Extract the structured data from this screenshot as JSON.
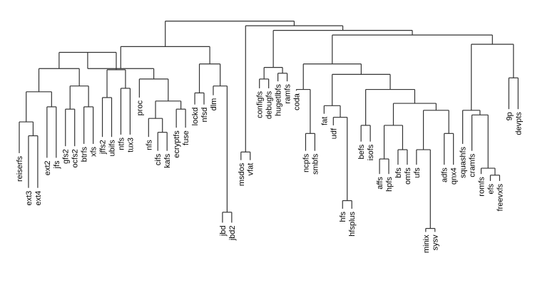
{
  "chart_data": {
    "type": "dendrogram",
    "title": "",
    "xlabel": "",
    "ylabel": "",
    "axes_visible": false,
    "height_range": [
      0,
      1
    ],
    "leaves": [
      {
        "name": "reiserfs",
        "tip": 0.4
      },
      {
        "name": "ext3",
        "tip": 0.25
      },
      {
        "name": "ext4",
        "tip": 0.25
      },
      {
        "name": "ext2",
        "tip": 0.38
      },
      {
        "name": "jfs",
        "tip": 0.38
      },
      {
        "name": "gfs2",
        "tip": 0.43
      },
      {
        "name": "ocfs2",
        "tip": 0.43
      },
      {
        "name": "btrfs",
        "tip": 0.44
      },
      {
        "name": "xfs",
        "tip": 0.44
      },
      {
        "name": "jffs2",
        "tip": 0.47
      },
      {
        "name": "ubifs",
        "tip": 0.47
      },
      {
        "name": "ntfs",
        "tip": 0.48
      },
      {
        "name": "tux3",
        "tip": 0.48
      },
      {
        "name": "proc",
        "tip": 0.64
      },
      {
        "name": "nfs",
        "tip": 0.47
      },
      {
        "name": "cifs",
        "tip": 0.41
      },
      {
        "name": "kafs",
        "tip": 0.41
      },
      {
        "name": "ecryptfs",
        "tip": 0.51
      },
      {
        "name": "fuse",
        "tip": 0.51
      },
      {
        "name": "lockd",
        "tip": 0.61
      },
      {
        "name": "nfsd",
        "tip": 0.61
      },
      {
        "name": "dlm",
        "tip": 0.65
      },
      {
        "name": "jbd",
        "tip": 0.1
      },
      {
        "name": "jbd2",
        "tip": 0.1
      },
      {
        "name": "msdos",
        "tip": 0.37
      },
      {
        "name": "vfat",
        "tip": 0.37
      },
      {
        "name": "configfs",
        "tip": 0.68
      },
      {
        "name": "debugfs",
        "tip": 0.68
      },
      {
        "name": "hugetlbfs",
        "tip": 0.71
      },
      {
        "name": "ramfs",
        "tip": 0.71
      },
      {
        "name": "coda",
        "tip": 0.67
      },
      {
        "name": "ncpfs",
        "tip": 0.41
      },
      {
        "name": "smbfs",
        "tip": 0.41
      },
      {
        "name": "fat",
        "tip": 0.57
      },
      {
        "name": "udf",
        "tip": 0.52
      },
      {
        "name": "hfs",
        "tip": 0.16
      },
      {
        "name": "hfsplus",
        "tip": 0.16
      },
      {
        "name": "befs",
        "tip": 0.45
      },
      {
        "name": "isofs",
        "tip": 0.45
      },
      {
        "name": "affs",
        "tip": 0.31
      },
      {
        "name": "hpfs",
        "tip": 0.31
      },
      {
        "name": "bfs",
        "tip": 0.35
      },
      {
        "name": "omfs",
        "tip": 0.35
      },
      {
        "name": "ufs",
        "tip": 0.35
      },
      {
        "name": "minix",
        "tip": 0.06
      },
      {
        "name": "sysv",
        "tip": 0.06
      },
      {
        "name": "adfs",
        "tip": 0.35
      },
      {
        "name": "qnx4",
        "tip": 0.35
      },
      {
        "name": "squashfs",
        "tip": 0.44
      },
      {
        "name": "cramfs",
        "tip": 0.41
      },
      {
        "name": "romfs",
        "tip": 0.31
      },
      {
        "name": "efs",
        "tip": 0.28
      },
      {
        "name": "freevxfs",
        "tip": 0.28
      },
      {
        "name": "9p",
        "tip": 0.59
      },
      {
        "name": "devpts",
        "tip": 0.59
      }
    ],
    "merges": [
      {
        "id": "A1",
        "children": [
          "ext3",
          "ext4"
        ],
        "height": 0.475
      },
      {
        "id": "A2",
        "children": [
          "reiserfs",
          "A1"
        ],
        "height": 0.535
      },
      {
        "id": "A3",
        "children": [
          "ext2",
          "jfs"
        ],
        "height": 0.6
      },
      {
        "id": "A4",
        "children": [
          "A2",
          "A3"
        ],
        "height": 0.665
      },
      {
        "id": "A5",
        "children": [
          "gfs2",
          "ocfs2"
        ],
        "height": 0.59
      },
      {
        "id": "A6",
        "children": [
          "btrfs",
          "xfs"
        ],
        "height": 0.6
      },
      {
        "id": "A7",
        "children": [
          "A5",
          "A6"
        ],
        "height": 0.69
      },
      {
        "id": "A8",
        "children": [
          "A4",
          "A7"
        ],
        "height": 0.765
      },
      {
        "id": "A9",
        "children": [
          "jffs2",
          "ubifs"
        ],
        "height": 0.64
      },
      {
        "id": "A10",
        "children": [
          "ntfs",
          "tux3"
        ],
        "height": 0.68
      },
      {
        "id": "A11",
        "children": [
          "A9",
          "A10"
        ],
        "height": 0.76
      },
      {
        "id": "A12",
        "children": [
          "A8",
          "A11"
        ],
        "height": 0.835
      },
      {
        "id": "B1",
        "children": [
          "cifs",
          "kafs"
        ],
        "height": 0.49
      },
      {
        "id": "B2",
        "children": [
          "nfs",
          "B1"
        ],
        "height": 0.55
      },
      {
        "id": "B3",
        "children": [
          "ecryptfs",
          "fuse"
        ],
        "height": 0.59
      },
      {
        "id": "B4",
        "children": [
          "B2",
          "B3"
        ],
        "height": 0.625
      },
      {
        "id": "B5",
        "children": [
          "proc",
          "B4"
        ],
        "height": 0.72
      },
      {
        "id": "B6",
        "children": [
          "A12",
          "B5"
        ],
        "height": 0.765
      },
      {
        "id": "C1",
        "children": [
          "lockd",
          "nfsd"
        ],
        "height": 0.66
      },
      {
        "id": "C2",
        "children": [
          "jbd",
          "jbd2"
        ],
        "height": 0.145
      },
      {
        "id": "C3",
        "children": [
          "dlm",
          "C2"
        ],
        "height": 0.69
      },
      {
        "id": "C4",
        "children": [
          "C1",
          "C3"
        ],
        "height": 0.785
      },
      {
        "id": "R1",
        "children": [
          "B6",
          "C4"
        ],
        "height": 0.86
      },
      {
        "id": "D1",
        "children": [
          "msdos",
          "vfat"
        ],
        "height": 0.405
      },
      {
        "id": "E1",
        "children": [
          "configfs",
          "debugfs"
        ],
        "height": 0.72
      },
      {
        "id": "E2",
        "children": [
          "hugetlbfs",
          "ramfs"
        ],
        "height": 0.745
      },
      {
        "id": "E3",
        "children": [
          "E1",
          "E2"
        ],
        "height": 0.77
      },
      {
        "id": "F1",
        "children": [
          "ncpfs",
          "smbfs"
        ],
        "height": 0.485
      },
      {
        "id": "F2",
        "children": [
          "coda",
          "F1"
        ],
        "height": 0.675
      },
      {
        "id": "G1",
        "children": [
          "hfs",
          "hfsplus"
        ],
        "height": 0.195
      },
      {
        "id": "G2",
        "children": [
          "udf",
          "G1"
        ],
        "height": 0.555
      },
      {
        "id": "G3",
        "children": [
          "fat",
          "G2"
        ],
        "height": 0.605
      },
      {
        "id": "H1",
        "children": [
          "befs",
          "isofs"
        ],
        "height": 0.52
      },
      {
        "id": "H2",
        "children": [
          "affs",
          "hpfs"
        ],
        "height": 0.375
      },
      {
        "id": "H3",
        "children": [
          "bfs",
          "omfs"
        ],
        "height": 0.415
      },
      {
        "id": "H4",
        "children": [
          "H2",
          "H3"
        ],
        "height": 0.52
      },
      {
        "id": "H5",
        "children": [
          "minix",
          "sysv"
        ],
        "height": 0.075
      },
      {
        "id": "H6",
        "children": [
          "ufs",
          "H5"
        ],
        "height": 0.415
      },
      {
        "id": "H7",
        "children": [
          "adfs",
          "qnx4"
        ],
        "height": 0.485
      },
      {
        "id": "H8",
        "children": [
          "H6",
          "H7"
        ],
        "height": 0.585
      },
      {
        "id": "H9",
        "children": [
          "H4",
          "H8"
        ],
        "height": 0.615
      },
      {
        "id": "H10",
        "children": [
          "H1",
          "H9"
        ],
        "height": 0.675
      },
      {
        "id": "G4",
        "children": [
          "G3",
          "H10"
        ],
        "height": 0.74
      },
      {
        "id": "G5",
        "children": [
          "F2",
          "G4"
        ],
        "height": 0.785
      },
      {
        "id": "I1",
        "children": [
          "efs",
          "freevxfs"
        ],
        "height": 0.305
      },
      {
        "id": "I2",
        "children": [
          "romfs",
          "I1"
        ],
        "height": 0.335
      },
      {
        "id": "I3",
        "children": [
          "cramfs",
          "I2"
        ],
        "height": 0.565
      },
      {
        "id": "I4",
        "children": [
          "squashfs",
          "I3"
        ],
        "height": 0.585
      },
      {
        "id": "I5",
        "children": [
          "9p",
          "devpts"
        ],
        "height": 0.725
      },
      {
        "id": "I6",
        "children": [
          "I4",
          "I5"
        ],
        "height": 0.87
      },
      {
        "id": "J1",
        "children": [
          "G5",
          "I6"
        ],
        "height": 0.91
      },
      {
        "id": "J2",
        "children": [
          "E3",
          "J1"
        ],
        "height": 0.93
      },
      {
        "id": "J3",
        "children": [
          "D1",
          "J2"
        ],
        "height": 0.95
      },
      {
        "id": "ROOT",
        "children": [
          "R1",
          "J3"
        ],
        "height": 0.97
      }
    ]
  }
}
